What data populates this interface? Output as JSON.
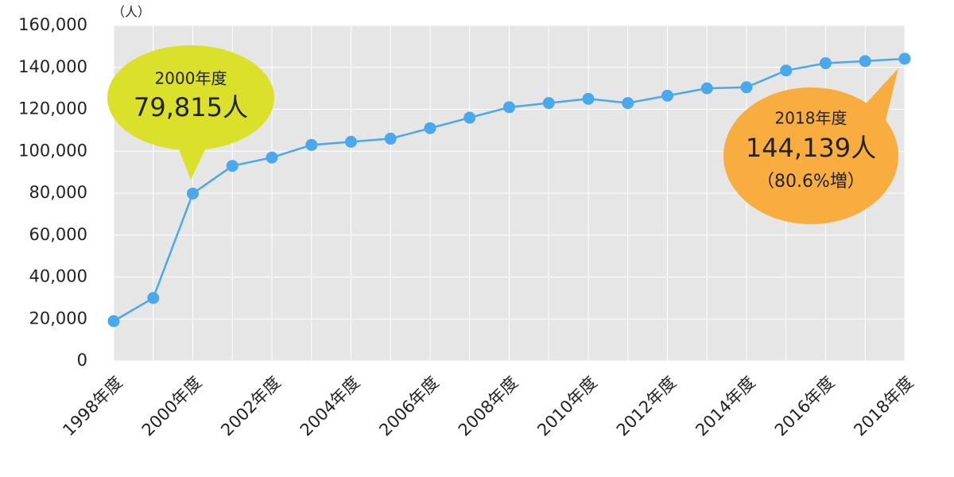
{
  "chart_data": {
    "type": "line",
    "y_unit": "（人）",
    "categories": [
      "1998年度",
      null,
      "2000年度",
      null,
      "2002年度",
      null,
      "2004年度",
      null,
      "2006年度",
      null,
      "2008年度",
      null,
      "2010年度",
      null,
      "2012年度",
      null,
      "2014年度",
      null,
      "2016年度",
      null,
      "2018年度"
    ],
    "series": [
      {
        "color": "#4aa8ec",
        "values": [
          19000,
          30000,
          79815,
          93000,
          97000,
          103000,
          104500,
          106000,
          111000,
          116000,
          121000,
          123000,
          125000,
          123000,
          126500,
          130000,
          130500,
          138500,
          142000,
          143000,
          144139
        ]
      }
    ],
    "ylim": [
      0,
      160000
    ],
    "yticks": [
      0,
      {
        "value": 20000,
        "label": "20,000"
      },
      {
        "value": 40000,
        "label": "40,000"
      },
      {
        "value": 60000,
        "label": "60,000"
      },
      {
        "value": 80000,
        "label": "80,000"
      },
      {
        "value": 100000,
        "label": "100,000"
      },
      {
        "value": 120000,
        "label": "120,000"
      },
      {
        "value": 140000,
        "label": "140,000"
      },
      {
        "value": 160000,
        "label": "160,000"
      }
    ],
    "grid": true,
    "annotations": [
      {
        "year": "2000年度",
        "value": "79,815人",
        "color": "#dbe02a"
      },
      {
        "year": "2018年度",
        "value": "144,139人",
        "note": "（80.6%増）",
        "color": "#f9ad3f"
      }
    ]
  }
}
